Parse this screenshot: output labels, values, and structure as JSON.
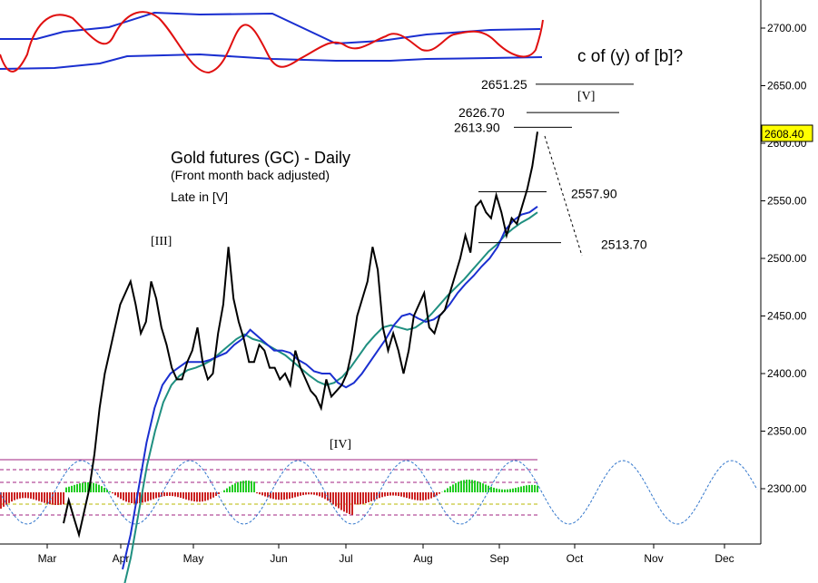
{
  "chart_data": {
    "type": "line",
    "title": "Gold futures (GC) - Daily",
    "subtitle": "(Front month back adjusted)",
    "note": "Late in [V]",
    "question": "c of (y) of [b]?",
    "x_labels": [
      "Mar",
      "Apr",
      "May",
      "Jun",
      "Jul",
      "Aug",
      "Sep",
      "Oct",
      "Nov",
      "Dec"
    ],
    "ylim": [
      2250,
      2740
    ],
    "y_ticks": [
      "2700.00",
      "2650.00",
      "2600.00",
      "2550.00",
      "2500.00",
      "2450.00",
      "2400.00",
      "2350.00",
      "2300.00"
    ],
    "y_tick_values": [
      2700,
      2650,
      2600,
      2550,
      2500,
      2450,
      2400,
      2350,
      2300
    ],
    "last_price": "2608.40",
    "last_price_value": 2608.4,
    "levels": [
      {
        "label": "2651.25",
        "value": 2651.25
      },
      {
        "label": "2626.70",
        "value": 2626.7
      },
      {
        "label": "2613.90",
        "value": 2613.9
      },
      {
        "label": "2557.90",
        "value": 2557.9
      },
      {
        "label": "2513.70",
        "value": 2513.7
      }
    ],
    "wave_labels": [
      "[III]",
      "[IV]",
      "[V]"
    ],
    "colors": {
      "price": "#000000",
      "ma_fast": "#1a2fd0",
      "ma_slow": "#1f8f80",
      "osc_red": "#e01010",
      "osc_band": "#1a2fd0",
      "hist_pos": "#22cc22",
      "hist_neg": "#cc2222",
      "cycle": "#3377cc",
      "level_line": "#000000",
      "price_box": "#ffff00"
    },
    "series": [
      {
        "values": [
          2270,
          2290,
          2275,
          2260,
          2280,
          2300,
          2330,
          2370,
          2400,
          2420,
          2440,
          2460,
          2470,
          2480,
          2460,
          2435,
          2445,
          2480,
          2465,
          2440,
          2425,
          2405,
          2395,
          2395,
          2410,
          2420,
          2440,
          2410,
          2395,
          2400,
          2435,
          2460,
          2510,
          2465,
          2445,
          2430,
          2410,
          2410,
          2425,
          2420,
          2405,
          2405,
          2395,
          2400,
          2390,
          2420,
          2405,
          2395,
          2385,
          2380,
          2370,
          2395,
          2380,
          2385,
          2390,
          2400,
          2420,
          2450,
          2465,
          2480,
          2510,
          2490,
          2440,
          2420,
          2435,
          2420,
          2400,
          2420,
          2450,
          2460,
          2470,
          2440,
          2435,
          2450,
          2455,
          2470,
          2485,
          2500,
          2520,
          2505,
          2545,
          2550,
          2540,
          2535,
          2555,
          2540,
          2520,
          2535,
          2530,
          2545,
          2560,
          2580,
          2610
        ]
      },
      {
        "values": [
          2230,
          2260,
          2300,
          2340,
          2370,
          2390,
          2400,
          2405,
          2410,
          2410,
          2410,
          2412,
          2415,
          2418,
          2425,
          2430,
          2438,
          2432,
          2426,
          2420,
          2420,
          2418,
          2412,
          2408,
          2402,
          2400,
          2400,
          2392,
          2388,
          2392,
          2400,
          2410,
          2420,
          2430,
          2442,
          2450,
          2452,
          2448,
          2445,
          2447,
          2452,
          2460,
          2470,
          2478,
          2485,
          2493,
          2500,
          2510,
          2525,
          2533,
          2538,
          2540,
          2545
        ]
      },
      {
        "values": [
          2210,
          2240,
          2280,
          2320,
          2350,
          2375,
          2390,
          2398,
          2403,
          2405,
          2408,
          2412,
          2418,
          2424,
          2430,
          2434,
          2430,
          2428,
          2424,
          2420,
          2416,
          2410,
          2404,
          2398,
          2393,
          2390,
          2392,
          2397,
          2405,
          2415,
          2425,
          2433,
          2440,
          2442,
          2440,
          2438,
          2440,
          2445,
          2452,
          2460,
          2468,
          2475,
          2482,
          2490,
          2498,
          2506,
          2512,
          2520,
          2526,
          2531,
          2535,
          2540
        ]
      }
    ]
  }
}
